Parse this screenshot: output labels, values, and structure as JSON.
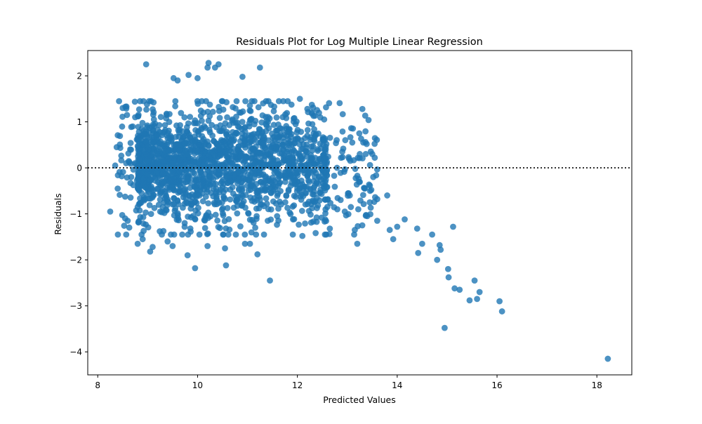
{
  "chart_data": {
    "type": "scatter",
    "title": "Residuals Plot for Log Multiple Linear Regression",
    "xlabel": "Predicted Values",
    "ylabel": "Residuals",
    "xlim": [
      7.8,
      18.7
    ],
    "ylim": [
      -4.5,
      2.55
    ],
    "xticks": [
      8,
      10,
      12,
      14,
      16,
      18
    ],
    "yticks": [
      -4,
      -3,
      -2,
      -1,
      0,
      1,
      2
    ],
    "xtick_labels": [
      "8",
      "10",
      "12",
      "14",
      "16",
      "18"
    ],
    "ytick_labels": [
      "−4",
      "−3",
      "−2",
      "−1",
      "0",
      "1",
      "2"
    ],
    "reference_line": {
      "y": 0,
      "style": "dotted",
      "color": "#000000"
    },
    "grid": false,
    "legend": "none",
    "marker_color": "#1f77b4",
    "marker_alpha": 0.8,
    "clusters": [
      {
        "x_range": [
          8.8,
          12.6
        ],
        "y_mean": 0.1,
        "y_sd": 0.55,
        "count": 1500,
        "description": "dense main cloud"
      },
      {
        "x_range": [
          8.4,
          13.6
        ],
        "y_mean": 0.0,
        "y_sd": 0.8,
        "count": 450,
        "description": "spread halo"
      }
    ],
    "points": [
      {
        "x": 8.25,
        "y": -0.95
      },
      {
        "x": 8.35,
        "y": 0.05
      },
      {
        "x": 8.38,
        "y": 0.45
      },
      {
        "x": 8.4,
        "y": -0.45
      },
      {
        "x": 8.5,
        "y": 1.3
      },
      {
        "x": 8.55,
        "y": -1.1
      },
      {
        "x": 8.6,
        "y": -1.15
      },
      {
        "x": 8.7,
        "y": 0.9
      },
      {
        "x": 8.75,
        "y": 1.1
      },
      {
        "x": 8.8,
        "y": -0.85
      },
      {
        "x": 8.8,
        "y": -1.65
      },
      {
        "x": 8.9,
        "y": -1.55
      },
      {
        "x": 8.97,
        "y": 2.25
      },
      {
        "x": 9.05,
        "y": -1.82
      },
      {
        "x": 9.1,
        "y": -1.72
      },
      {
        "x": 9.4,
        "y": -1.6
      },
      {
        "x": 9.5,
        "y": -1.7
      },
      {
        "x": 9.52,
        "y": 1.95
      },
      {
        "x": 9.6,
        "y": 1.9
      },
      {
        "x": 9.8,
        "y": -1.9
      },
      {
        "x": 9.82,
        "y": 2.02
      },
      {
        "x": 9.95,
        "y": -2.18
      },
      {
        "x": 10.0,
        "y": 1.95
      },
      {
        "x": 10.2,
        "y": -1.7
      },
      {
        "x": 10.2,
        "y": 2.18
      },
      {
        "x": 10.22,
        "y": 2.28
      },
      {
        "x": 10.35,
        "y": 2.18
      },
      {
        "x": 10.42,
        "y": 2.25
      },
      {
        "x": 10.55,
        "y": -1.75
      },
      {
        "x": 10.57,
        "y": -2.12
      },
      {
        "x": 10.9,
        "y": 1.98
      },
      {
        "x": 10.95,
        "y": -1.65
      },
      {
        "x": 11.05,
        "y": -1.65
      },
      {
        "x": 11.2,
        "y": -1.88
      },
      {
        "x": 11.25,
        "y": 2.18
      },
      {
        "x": 11.45,
        "y": -2.45
      },
      {
        "x": 12.05,
        "y": 1.5
      },
      {
        "x": 12.1,
        "y": -1.48
      },
      {
        "x": 12.3,
        "y": 0.95
      },
      {
        "x": 12.55,
        "y": 0.6
      },
      {
        "x": 12.6,
        "y": -0.85
      },
      {
        "x": 12.65,
        "y": -1.32
      },
      {
        "x": 12.8,
        "y": -0.9
      },
      {
        "x": 12.9,
        "y": 0.35
      },
      {
        "x": 12.95,
        "y": -0.95
      },
      {
        "x": 13.05,
        "y": -0.6
      },
      {
        "x": 13.1,
        "y": 0.55
      },
      {
        "x": 13.15,
        "y": -1.35
      },
      {
        "x": 13.2,
        "y": -1.65
      },
      {
        "x": 13.22,
        "y": -0.9
      },
      {
        "x": 13.25,
        "y": 0.3
      },
      {
        "x": 13.3,
        "y": -1.25
      },
      {
        "x": 13.32,
        "y": 0.55
      },
      {
        "x": 13.35,
        "y": -0.45
      },
      {
        "x": 13.4,
        "y": -1.05
      },
      {
        "x": 13.45,
        "y": -0.75
      },
      {
        "x": 13.5,
        "y": 0.3
      },
      {
        "x": 13.52,
        "y": -0.2
      },
      {
        "x": 13.55,
        "y": 0.22
      },
      {
        "x": 13.6,
        "y": -0.68
      },
      {
        "x": 13.6,
        "y": -1.15
      },
      {
        "x": 13.8,
        "y": -0.6
      },
      {
        "x": 13.85,
        "y": -1.35
      },
      {
        "x": 13.92,
        "y": -1.55
      },
      {
        "x": 14.0,
        "y": -1.28
      },
      {
        "x": 14.15,
        "y": -1.12
      },
      {
        "x": 14.4,
        "y": -1.32
      },
      {
        "x": 14.42,
        "y": -1.85
      },
      {
        "x": 14.5,
        "y": -1.65
      },
      {
        "x": 14.7,
        "y": -1.45
      },
      {
        "x": 14.8,
        "y": -2.0
      },
      {
        "x": 14.85,
        "y": -1.68
      },
      {
        "x": 14.87,
        "y": -1.78
      },
      {
        "x": 14.95,
        "y": -3.48
      },
      {
        "x": 15.02,
        "y": -2.2
      },
      {
        "x": 15.03,
        "y": -2.38
      },
      {
        "x": 15.12,
        "y": -1.28
      },
      {
        "x": 15.15,
        "y": -2.62
      },
      {
        "x": 15.25,
        "y": -2.65
      },
      {
        "x": 15.45,
        "y": -2.88
      },
      {
        "x": 15.55,
        "y": -2.45
      },
      {
        "x": 15.6,
        "y": -2.85
      },
      {
        "x": 15.65,
        "y": -2.7
      },
      {
        "x": 16.05,
        "y": -2.9
      },
      {
        "x": 16.1,
        "y": -3.12
      },
      {
        "x": 18.22,
        "y": -4.15
      }
    ]
  }
}
